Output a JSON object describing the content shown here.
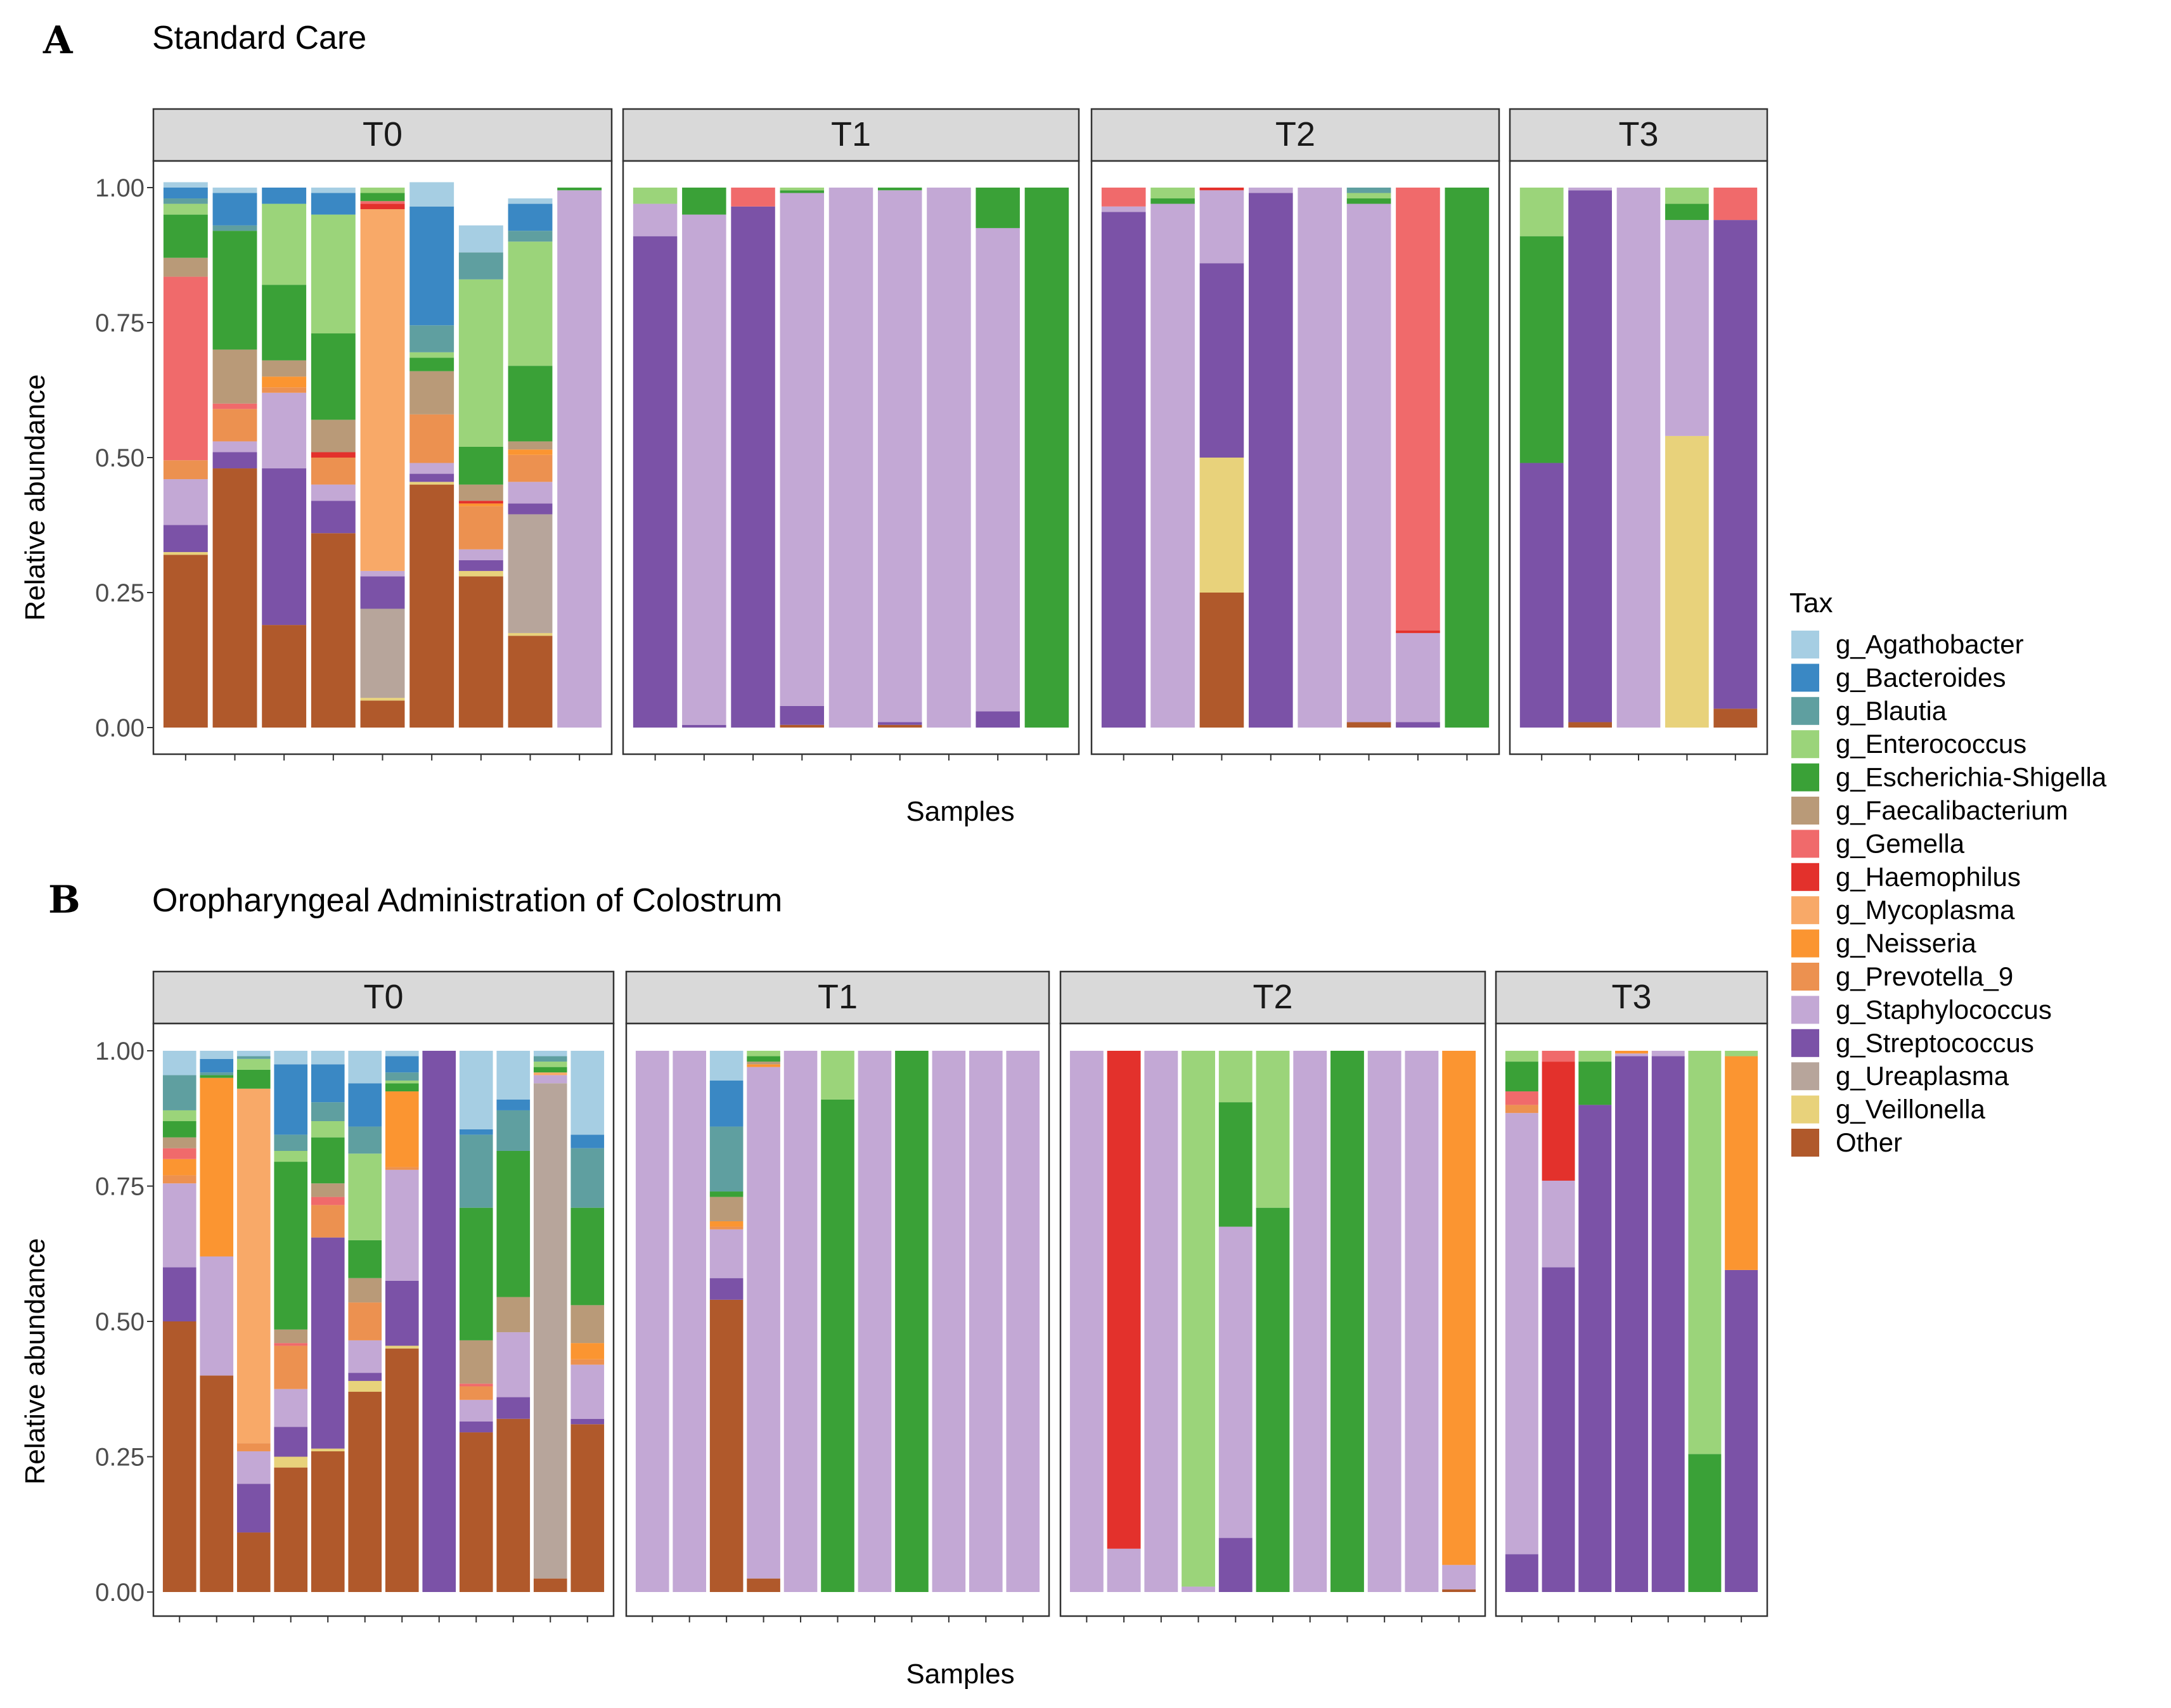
{
  "chart_data": {
    "type": "bar",
    "stacked": true,
    "xlabel": "Samples",
    "ylabel": "Relative abundance",
    "ylim": [
      0,
      1
    ],
    "yticks": [
      "0.00",
      "0.25",
      "0.50",
      "0.75",
      "1.00"
    ],
    "legend": {
      "title": "Tax",
      "position": "right",
      "entries": [
        {
          "key": "Agathobacter",
          "label": "g_Agathobacter",
          "color": "#a6cee3"
        },
        {
          "key": "Bacteroides",
          "label": "g_Bacteroides",
          "color": "#3a88c4"
        },
        {
          "key": "Blautia",
          "label": "g_Blautia",
          "color": "#5f9fa0"
        },
        {
          "key": "Enterococcus",
          "label": "g_Enterococcus",
          "color": "#9bd47a"
        },
        {
          "key": "Escherichia",
          "label": "g_Escherichia-Shigella",
          "color": "#3aa137"
        },
        {
          "key": "Faecalibacterium",
          "label": "g_Faecalibacterium",
          "color": "#b99a78"
        },
        {
          "key": "Gemella",
          "label": "g_Gemella",
          "color": "#f06a6b"
        },
        {
          "key": "Haemophilus",
          "label": "g_Haemophilus",
          "color": "#e3312c"
        },
        {
          "key": "Mycoplasma",
          "label": "g_Mycoplasma",
          "color": "#f8a968"
        },
        {
          "key": "Neisseria",
          "label": "g_Neisseria",
          "color": "#fb9531"
        },
        {
          "key": "Prevotella",
          "label": "g_Prevotella_9",
          "color": "#ec9150"
        },
        {
          "key": "Staphylococcus",
          "label": "g_Staphylococcus",
          "color": "#c3a8d5"
        },
        {
          "key": "Streptococcus",
          "label": "g_Streptococcus",
          "color": "#7b52a7"
        },
        {
          "key": "Ureaplasma",
          "label": "g_Ureaplasma",
          "color": "#b7a59b"
        },
        {
          "key": "Veillonella",
          "label": "g_Veillonella",
          "color": "#e8d27b"
        },
        {
          "key": "Other",
          "label": "Other",
          "color": "#b0592b"
        }
      ]
    },
    "panels": [
      {
        "letter": "A",
        "title": "Standard Care",
        "facets": [
          {
            "label": "T0",
            "samples": [
              {
                "Other": 0.32,
                "Veillonella": 0.005,
                "Streptococcus": 0.05,
                "Staphylococcus": 0.085,
                "Prevotella": 0.035,
                "Gemella": 0.34,
                "Faecalibacterium": 0.035,
                "Escherichia": 0.08,
                "Enterococcus": 0.02,
                "Blautia": 0.01,
                "Bacteroides": 0.02,
                "Agathobacter": 0.01
              },
              {
                "Other": 0.48,
                "Streptococcus": 0.03,
                "Staphylococcus": 0.02,
                "Prevotella": 0.06,
                "Gemella": 0.01,
                "Faecalibacterium": 0.1,
                "Escherichia": 0.22,
                "Blautia": 0.01,
                "Bacteroides": 0.06,
                "Agathobacter": 0.01
              },
              {
                "Other": 0.19,
                "Streptococcus": 0.29,
                "Staphylococcus": 0.14,
                "Neisseria": 0.02,
                "Prevotella": 0.01,
                "Faecalibacterium": 0.03,
                "Escherichia": 0.14,
                "Enterococcus": 0.15,
                "Bacteroides": 0.03
              },
              {
                "Other": 0.36,
                "Streptococcus": 0.06,
                "Staphylococcus": 0.03,
                "Prevotella": 0.05,
                "Haemophilus": 0.01,
                "Faecalibacterium": 0.06,
                "Escherichia": 0.16,
                "Enterococcus": 0.22,
                "Bacteroides": 0.04,
                "Agathobacter": 0.01
              },
              {
                "Other": 0.05,
                "Veillonella": 0.005,
                "Ureaplasma": 0.165,
                "Streptococcus": 0.06,
                "Staphylococcus": 0.01,
                "Mycoplasma": 0.67,
                "Gemella": 0.005,
                "Haemophilus": 0.01,
                "Escherichia": 0.015,
                "Enterococcus": 0.01
              },
              {
                "Other": 0.45,
                "Veillonella": 0.005,
                "Streptococcus": 0.015,
                "Staphylococcus": 0.02,
                "Prevotella": 0.09,
                "Faecalibacterium": 0.08,
                "Escherichia": 0.025,
                "Enterococcus": 0.01,
                "Blautia": 0.05,
                "Bacteroides": 0.22,
                "Agathobacter": 0.045
              },
              {
                "Other": 0.28,
                "Veillonella": 0.01,
                "Streptococcus": 0.02,
                "Staphylococcus": 0.02,
                "Neisseria": 0.005,
                "Prevotella": 0.08,
                "Haemophilus": 0.005,
                "Faecalibacterium": 0.03,
                "Escherichia": 0.07,
                "Enterococcus": 0.31,
                "Blautia": 0.05,
                "Agathobacter": 0.05
              },
              {
                "Other": 0.17,
                "Veillonella": 0.005,
                "Ureaplasma": 0.22,
                "Streptococcus": 0.02,
                "Staphylococcus": 0.04,
                "Neisseria": 0.01,
                "Prevotella": 0.05,
                "Faecalibacterium": 0.015,
                "Escherichia": 0.14,
                "Enterococcus": 0.23,
                "Blautia": 0.02,
                "Bacteroides": 0.05,
                "Agathobacter": 0.01
              },
              {
                "Staphylococcus": 0.995,
                "Escherichia": 0.005
              }
            ]
          },
          {
            "label": "T1",
            "samples": [
              {
                "Streptococcus": 0.91,
                "Staphylococcus": 0.06,
                "Enterococcus": 0.03
              },
              {
                "Streptococcus": 0.005,
                "Staphylococcus": 0.945,
                "Escherichia": 0.05
              },
              {
                "Streptococcus": 0.965,
                "Gemella": 0.035
              },
              {
                "Other": 0.005,
                "Streptococcus": 0.035,
                "Staphylococcus": 0.95,
                "Enterococcus": 0.005,
                "Escherichia": 0.005
              },
              {
                "Staphylococcus": 1.0
              },
              {
                "Other": 0.005,
                "Streptococcus": 0.005,
                "Staphylococcus": 0.985,
                "Escherichia": 0.005
              },
              {
                "Staphylococcus": 1.0
              },
              {
                "Streptococcus": 0.03,
                "Staphylococcus": 0.895,
                "Escherichia": 0.075
              },
              {
                "Escherichia": 1.0
              }
            ]
          },
          {
            "label": "T2",
            "samples": [
              {
                "Streptococcus": 0.955,
                "Staphylococcus": 0.01,
                "Gemella": 0.035
              },
              {
                "Staphylococcus": 0.97,
                "Escherichia": 0.01,
                "Enterococcus": 0.02
              },
              {
                "Other": 0.25,
                "Veillonella": 0.25,
                "Streptococcus": 0.36,
                "Staphylococcus": 0.135,
                "Haemophilus": 0.005
              },
              {
                "Streptococcus": 0.99,
                "Staphylococcus": 0.01
              },
              {
                "Staphylococcus": 1.0
              },
              {
                "Other": 0.01,
                "Staphylococcus": 0.96,
                "Escherichia": 0.01,
                "Enterococcus": 0.01,
                "Blautia": 0.01
              },
              {
                "Streptococcus": 0.01,
                "Staphylococcus": 0.165,
                "Haemophilus": 0.005,
                "Gemella": 0.82
              },
              {
                "Escherichia": 1.0
              }
            ]
          },
          {
            "label": "T3",
            "samples": [
              {
                "Streptococcus": 0.49,
                "Escherichia": 0.42,
                "Enterococcus": 0.09
              },
              {
                "Other": 0.01,
                "Streptococcus": 0.985,
                "Staphylococcus": 0.005
              },
              {
                "Staphylococcus": 1.0
              },
              {
                "Veillonella": 0.54,
                "Staphylococcus": 0.4,
                "Escherichia": 0.03,
                "Enterococcus": 0.03
              },
              {
                "Other": 0.035,
                "Streptococcus": 0.905,
                "Gemella": 0.06
              }
            ]
          }
        ]
      },
      {
        "letter": "B",
        "title": "Oropharyngeal Administration of Colostrum",
        "facets": [
          {
            "label": "T0",
            "samples": [
              {
                "Other": 0.5,
                "Streptococcus": 0.1,
                "Staphylococcus": 0.155,
                "Neisseria": 0.03,
                "Prevotella": 0.015,
                "Gemella": 0.02,
                "Faecalibacterium": 0.02,
                "Escherichia": 0.03,
                "Enterococcus": 0.02,
                "Blautia": 0.065,
                "Agathobacter": 0.045
              },
              {
                "Other": 0.4,
                "Staphylococcus": 0.22,
                "Neisseria": 0.33,
                "Escherichia": 0.005,
                "Blautia": 0.005,
                "Bacteroides": 0.025,
                "Agathobacter": 0.015
              },
              {
                "Other": 0.11,
                "Streptococcus": 0.09,
                "Staphylococcus": 0.06,
                "Mycoplasma": 0.655,
                "Prevotella": 0.015,
                "Escherichia": 0.035,
                "Enterococcus": 0.02,
                "Blautia": 0.005,
                "Agathobacter": 0.01
              },
              {
                "Other": 0.23,
                "Veillonella": 0.02,
                "Streptococcus": 0.055,
                "Staphylococcus": 0.07,
                "Prevotella": 0.08,
                "Gemella": 0.005,
                "Faecalibacterium": 0.025,
                "Escherichia": 0.31,
                "Enterococcus": 0.02,
                "Blautia": 0.03,
                "Bacteroides": 0.13,
                "Agathobacter": 0.025
              },
              {
                "Other": 0.26,
                "Veillonella": 0.005,
                "Streptococcus": 0.39,
                "Prevotella": 0.06,
                "Gemella": 0.015,
                "Faecalibacterium": 0.025,
                "Escherichia": 0.085,
                "Enterococcus": 0.03,
                "Blautia": 0.035,
                "Bacteroides": 0.07,
                "Agathobacter": 0.025
              },
              {
                "Other": 0.37,
                "Veillonella": 0.02,
                "Streptococcus": 0.015,
                "Staphylococcus": 0.06,
                "Prevotella": 0.07,
                "Faecalibacterium": 0.045,
                "Escherichia": 0.07,
                "Enterococcus": 0.16,
                "Blautia": 0.05,
                "Bacteroides": 0.08,
                "Agathobacter": 0.06
              },
              {
                "Other": 0.45,
                "Veillonella": 0.005,
                "Streptococcus": 0.12,
                "Staphylococcus": 0.205,
                "Neisseria": 0.14,
                "Prevotella": 0.005,
                "Escherichia": 0.015,
                "Enterococcus": 0.005,
                "Blautia": 0.015,
                "Bacteroides": 0.03,
                "Agathobacter": 0.01
              },
              {
                "Streptococcus": 1.0
              },
              {
                "Other": 0.295,
                "Streptococcus": 0.02,
                "Staphylococcus": 0.04,
                "Prevotella": 0.025,
                "Gemella": 0.005,
                "Faecalibacterium": 0.08,
                "Escherichia": 0.245,
                "Blautia": 0.135,
                "Bacteroides": 0.01,
                "Agathobacter": 0.145
              },
              {
                "Other": 0.32,
                "Streptococcus": 0.04,
                "Staphylococcus": 0.12,
                "Faecalibacterium": 0.065,
                "Escherichia": 0.27,
                "Blautia": 0.075,
                "Bacteroides": 0.02,
                "Agathobacter": 0.09
              },
              {
                "Other": 0.025,
                "Ureaplasma": 0.915,
                "Staphylococcus": 0.015,
                "Mycoplasma": 0.005,
                "Escherichia": 0.01,
                "Enterococcus": 0.01,
                "Blautia": 0.01,
                "Agathobacter": 0.01
              },
              {
                "Other": 0.31,
                "Streptococcus": 0.01,
                "Staphylococcus": 0.1,
                "Neisseria": 0.03,
                "Prevotella": 0.01,
                "Faecalibacterium": 0.07,
                "Escherichia": 0.18,
                "Blautia": 0.11,
                "Bacteroides": 0.025,
                "Agathobacter": 0.155
              }
            ]
          },
          {
            "label": "T1",
            "samples": [
              {
                "Staphylococcus": 1.0
              },
              {
                "Staphylococcus": 1.0
              },
              {
                "Other": 0.54,
                "Streptococcus": 0.04,
                "Staphylococcus": 0.09,
                "Neisseria": 0.01,
                "Prevotella": 0.005,
                "Faecalibacterium": 0.045,
                "Escherichia": 0.01,
                "Blautia": 0.12,
                "Bacteroides": 0.085,
                "Agathobacter": 0.055
              },
              {
                "Other": 0.025,
                "Staphylococcus": 0.945,
                "Neisseria": 0.005,
                "Faecalibacterium": 0.005,
                "Escherichia": 0.01,
                "Enterococcus": 0.01
              },
              {
                "Staphylococcus": 1.0
              },
              {
                "Escherichia": 0.91,
                "Enterococcus": 0.09
              },
              {
                "Staphylococcus": 1.0
              },
              {
                "Escherichia": 1.0
              },
              {
                "Staphylococcus": 1.0
              },
              {
                "Staphylococcus": 1.0
              },
              {
                "Staphylococcus": 1.0
              }
            ]
          },
          {
            "label": "T2",
            "samples": [
              {
                "Staphylococcus": 1.0
              },
              {
                "Staphylococcus": 0.08,
                "Haemophilus": 0.92
              },
              {
                "Staphylococcus": 1.0
              },
              {
                "Staphylococcus": 0.01,
                "Enterococcus": 0.99
              },
              {
                "Streptococcus": 0.1,
                "Staphylococcus": 0.575,
                "Escherichia": 0.23,
                "Enterococcus": 0.095
              },
              {
                "Escherichia": 0.71,
                "Enterococcus": 0.29
              },
              {
                "Staphylococcus": 1.0
              },
              {
                "Escherichia": 1.0
              },
              {
                "Staphylococcus": 1.0
              },
              {
                "Staphylococcus": 1.0
              },
              {
                "Other": 0.005,
                "Staphylococcus": 0.045,
                "Neisseria": 0.95
              }
            ]
          },
          {
            "label": "T3",
            "samples": [
              {
                "Streptococcus": 0.07,
                "Staphylococcus": 0.815,
                "Prevotella": 0.015,
                "Gemella": 0.025,
                "Enterococcus": 0.02,
                "Escherichia": 0.055
              },
              {
                "Streptococcus": 0.6,
                "Staphylococcus": 0.16,
                "Haemophilus": 0.22,
                "Gemella": 0.02
              },
              {
                "Streptococcus": 0.9,
                "Escherichia": 0.08,
                "Enterococcus": 0.02
              },
              {
                "Streptococcus": 0.99,
                "Neisseria": 0.005,
                "Staphylococcus": 0.005
              },
              {
                "Streptococcus": 0.99,
                "Staphylococcus": 0.01
              },
              {
                "Escherichia": 0.255,
                "Enterococcus": 0.745
              },
              {
                "Streptococcus": 0.595,
                "Neisseria": 0.395,
                "Enterococcus": 0.01
              }
            ]
          }
        ]
      }
    ]
  }
}
